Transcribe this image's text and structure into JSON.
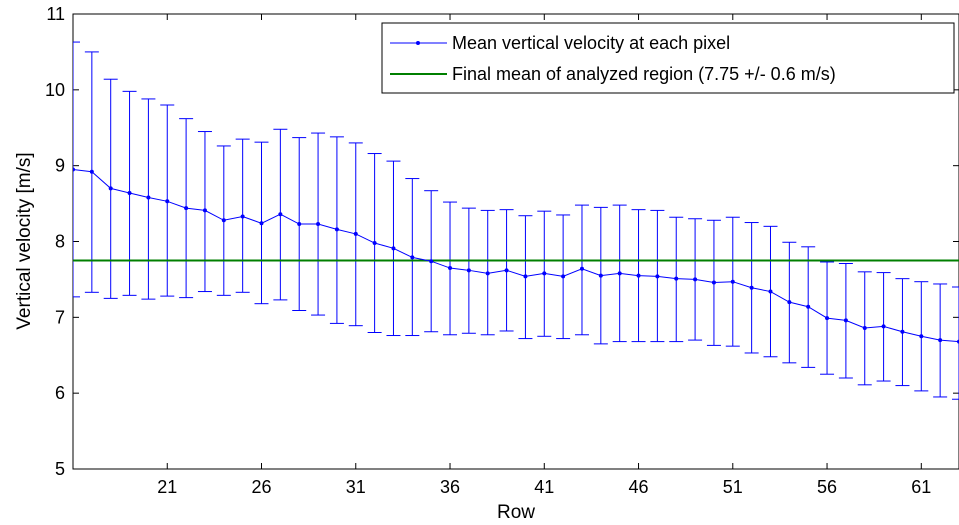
{
  "chart_data": {
    "type": "line",
    "xlabel": "Row",
    "ylabel": "Vertical velocity [m/s]",
    "xlim": [
      16,
      63
    ],
    "ylim": [
      5,
      11
    ],
    "xticks": [
      21,
      26,
      31,
      36,
      41,
      46,
      51,
      56,
      61
    ],
    "yticks": [
      5,
      6,
      7,
      8,
      9,
      10,
      11
    ],
    "grid": false,
    "legend_position": "top-right",
    "series": [
      {
        "name": "Mean vertical velocity at each pixel",
        "kind": "errorbar",
        "color": "#0000ff",
        "marker": "dot",
        "x": [
          16,
          17,
          18,
          19,
          20,
          21,
          22,
          23,
          24,
          25,
          26,
          27,
          28,
          29,
          30,
          31,
          32,
          33,
          34,
          35,
          36,
          37,
          38,
          39,
          40,
          41,
          42,
          43,
          44,
          45,
          46,
          47,
          48,
          49,
          50,
          51,
          52,
          53,
          54,
          55,
          56,
          57,
          58,
          59,
          60,
          61,
          62,
          63
        ],
        "y": [
          8.95,
          8.92,
          8.7,
          8.64,
          8.58,
          8.53,
          8.44,
          8.41,
          8.28,
          8.33,
          8.24,
          8.36,
          8.23,
          8.23,
          8.16,
          8.1,
          7.98,
          7.91,
          7.79,
          7.74,
          7.65,
          7.62,
          7.58,
          7.62,
          7.54,
          7.58,
          7.54,
          7.64,
          7.55,
          7.58,
          7.55,
          7.54,
          7.51,
          7.5,
          7.46,
          7.47,
          7.39,
          7.34,
          7.2,
          7.14,
          6.99,
          6.96,
          6.86,
          6.88,
          6.81,
          6.75,
          6.7,
          6.68
        ],
        "lower": [
          7.27,
          7.33,
          7.25,
          7.29,
          7.24,
          7.28,
          7.26,
          7.34,
          7.29,
          7.33,
          7.18,
          7.23,
          7.09,
          7.03,
          6.92,
          6.89,
          6.8,
          6.76,
          6.76,
          6.81,
          6.77,
          6.79,
          6.77,
          6.82,
          6.72,
          6.75,
          6.72,
          6.77,
          6.65,
          6.68,
          6.68,
          6.68,
          6.68,
          6.7,
          6.63,
          6.62,
          6.53,
          6.48,
          6.4,
          6.34,
          6.25,
          6.2,
          6.11,
          6.16,
          6.1,
          6.03,
          5.95,
          5.92
        ],
        "upper": [
          10.63,
          10.5,
          10.14,
          9.98,
          9.88,
          9.8,
          9.62,
          9.45,
          9.26,
          9.35,
          9.31,
          9.48,
          9.37,
          9.43,
          9.38,
          9.3,
          9.16,
          9.06,
          8.83,
          8.67,
          8.52,
          8.44,
          8.41,
          8.42,
          8.34,
          8.4,
          8.35,
          8.48,
          8.45,
          8.48,
          8.42,
          8.41,
          8.32,
          8.3,
          8.28,
          8.32,
          8.25,
          8.2,
          7.99,
          7.93,
          7.73,
          7.71,
          7.6,
          7.59,
          7.51,
          7.47,
          7.44,
          7.4
        ]
      },
      {
        "name": "Final mean of analyzed region (7.75 +/- 0.6 m/s)",
        "kind": "hline",
        "color": "#007f00",
        "y": 7.75
      }
    ]
  }
}
